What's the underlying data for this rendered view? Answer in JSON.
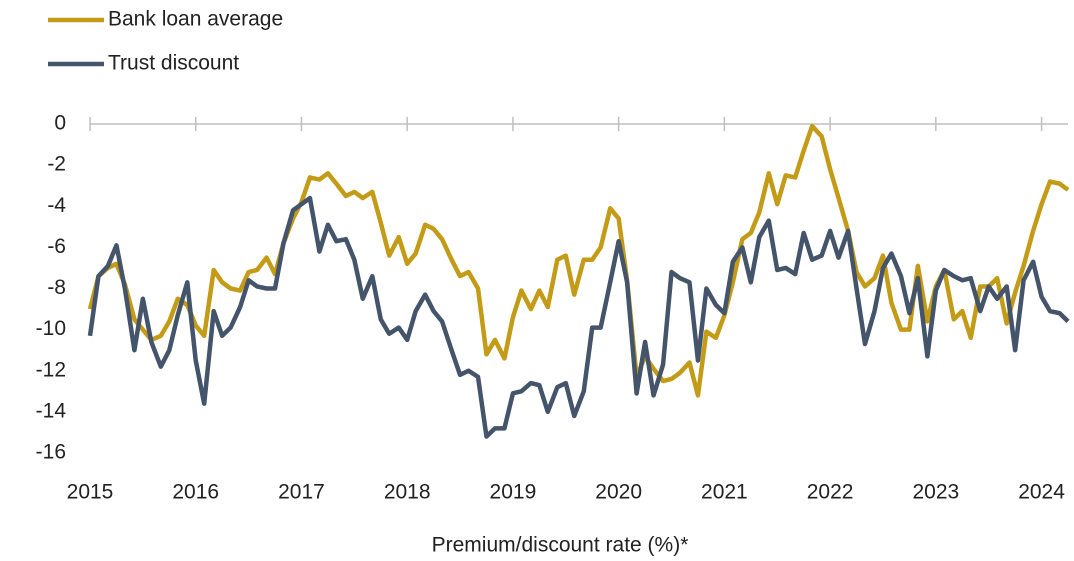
{
  "chart_data": {
    "type": "line",
    "x_label": "Premium/discount rate (%)*",
    "x": [
      2015.0,
      2015.08,
      2015.17,
      2015.25,
      2015.33,
      2015.42,
      2015.5,
      2015.58,
      2015.67,
      2015.75,
      2015.83,
      2015.92,
      2016.0,
      2016.08,
      2016.17,
      2016.25,
      2016.33,
      2016.42,
      2016.5,
      2016.58,
      2016.67,
      2016.75,
      2016.83,
      2016.92,
      2017.0,
      2017.08,
      2017.17,
      2017.25,
      2017.33,
      2017.42,
      2017.5,
      2017.58,
      2017.67,
      2017.75,
      2017.83,
      2017.92,
      2018.0,
      2018.08,
      2018.17,
      2018.25,
      2018.33,
      2018.42,
      2018.5,
      2018.58,
      2018.67,
      2018.75,
      2018.83,
      2018.92,
      2019.0,
      2019.08,
      2019.17,
      2019.25,
      2019.33,
      2019.42,
      2019.5,
      2019.58,
      2019.67,
      2019.75,
      2019.83,
      2019.92,
      2020.0,
      2020.08,
      2020.17,
      2020.25,
      2020.33,
      2020.42,
      2020.5,
      2020.58,
      2020.67,
      2020.75,
      2020.83,
      2020.92,
      2021.0,
      2021.08,
      2021.17,
      2021.25,
      2021.33,
      2021.42,
      2021.5,
      2021.58,
      2021.67,
      2021.75,
      2021.83,
      2021.92,
      2022.0,
      2022.08,
      2022.17,
      2022.25,
      2022.33,
      2022.42,
      2022.5,
      2022.58,
      2022.67,
      2022.75,
      2022.83,
      2022.92,
      2023.0,
      2023.08,
      2023.17,
      2023.25,
      2023.33,
      2023.42,
      2023.5,
      2023.58,
      2023.67,
      2023.75,
      2023.83,
      2023.92,
      2024.0,
      2024.08,
      2024.17,
      2024.25
    ],
    "series": [
      {
        "name": "Bank loan average",
        "color": "#c49b17",
        "values": [
          -9,
          -7.4,
          -7,
          -6.8,
          -7.8,
          -9.5,
          -10,
          -10.5,
          -10.3,
          -9.6,
          -8.5,
          -8.8,
          -9.8,
          -10.3,
          -7.1,
          -7.7,
          -8,
          -8.1,
          -7.2,
          -7.1,
          -6.5,
          -7.3,
          -5.8,
          -4.6,
          -3.8,
          -2.6,
          -2.7,
          -2.4,
          -2.9,
          -3.5,
          -3.3,
          -3.6,
          -3.3,
          -4.8,
          -6.4,
          -5.5,
          -6.8,
          -6.3,
          -4.9,
          -5.1,
          -5.6,
          -6.6,
          -7.4,
          -7.2,
          -8,
          -11.2,
          -10.5,
          -11.4,
          -9.4,
          -8.1,
          -9,
          -8.1,
          -8.9,
          -6.6,
          -6.4,
          -8.3,
          -6.6,
          -6.6,
          -6,
          -4.1,
          -4.6,
          -7.6,
          -12.3,
          -11.3,
          -11.9,
          -12.5,
          -12.4,
          -12.1,
          -11.6,
          -13.2,
          -10.1,
          -10.4,
          -9.3,
          -7.7,
          -5.6,
          -5.3,
          -4.3,
          -2.4,
          -3.9,
          -2.5,
          -2.6,
          -1.3,
          -0.1,
          -0.6,
          -2.2,
          -3.6,
          -5.2,
          -7.2,
          -7.9,
          -7.5,
          -6.4,
          -8.7,
          -10,
          -10,
          -6.9,
          -9.6,
          -7.9,
          -7.1,
          -9.5,
          -9.1,
          -10.4,
          -7.9,
          -7.9,
          -7.5,
          -9.7,
          -8.2,
          -6.9,
          -5.2,
          -3.9,
          -2.8,
          -2.9,
          -3.2
        ]
      },
      {
        "name": "Trust discount",
        "color": "#44546a",
        "values": [
          -10.3,
          -7.4,
          -6.9,
          -5.9,
          -8,
          -11,
          -8.5,
          -10.6,
          -11.8,
          -11,
          -9.3,
          -7.7,
          -11.5,
          -13.6,
          -9.1,
          -10.3,
          -9.9,
          -8.9,
          -7.6,
          -7.9,
          -8,
          -8,
          -5.8,
          -4.2,
          -3.9,
          -3.6,
          -6.2,
          -4.9,
          -5.7,
          -5.6,
          -6.6,
          -8.5,
          -7.4,
          -9.5,
          -10.2,
          -9.9,
          -10.5,
          -9.1,
          -8.3,
          -9.1,
          -9.6,
          -11,
          -12.2,
          -12,
          -12.3,
          -15.2,
          -14.8,
          -14.8,
          -13.1,
          -13,
          -12.6,
          -12.7,
          -14,
          -12.8,
          -12.6,
          -14.2,
          -13,
          -9.9,
          -9.9,
          -7.7,
          -5.7,
          -7.7,
          -13.1,
          -10.6,
          -13.2,
          -11.7,
          -7.2,
          -7.5,
          -7.7,
          -11.5,
          -8,
          -8.8,
          -9.2,
          -6.7,
          -6,
          -7.7,
          -5.5,
          -4.7,
          -7.1,
          -7,
          -7.3,
          -5.3,
          -6.6,
          -6.4,
          -5.2,
          -6.5,
          -5.2,
          -8,
          -10.7,
          -9.1,
          -7,
          -6.3,
          -7.4,
          -9.2,
          -7.5,
          -11.3,
          -8.1,
          -7.1,
          -7.4,
          -7.6,
          -7.5,
          -9.1,
          -7.9,
          -8.5,
          -7.9,
          -11,
          -7.6,
          -6.7,
          -8.4,
          -9.1,
          -9.2,
          -9.6
        ]
      }
    ],
    "xlim": [
      2015,
      2024.25
    ],
    "xticks": [
      2015,
      2016,
      2017,
      2018,
      2019,
      2020,
      2021,
      2022,
      2023,
      2024
    ],
    "ylim": [
      -16,
      0
    ],
    "yticks": [
      0,
      -2,
      -4,
      -6,
      -8,
      -10,
      -12,
      -14,
      -16
    ],
    "grid": false,
    "legend": "top-left"
  }
}
